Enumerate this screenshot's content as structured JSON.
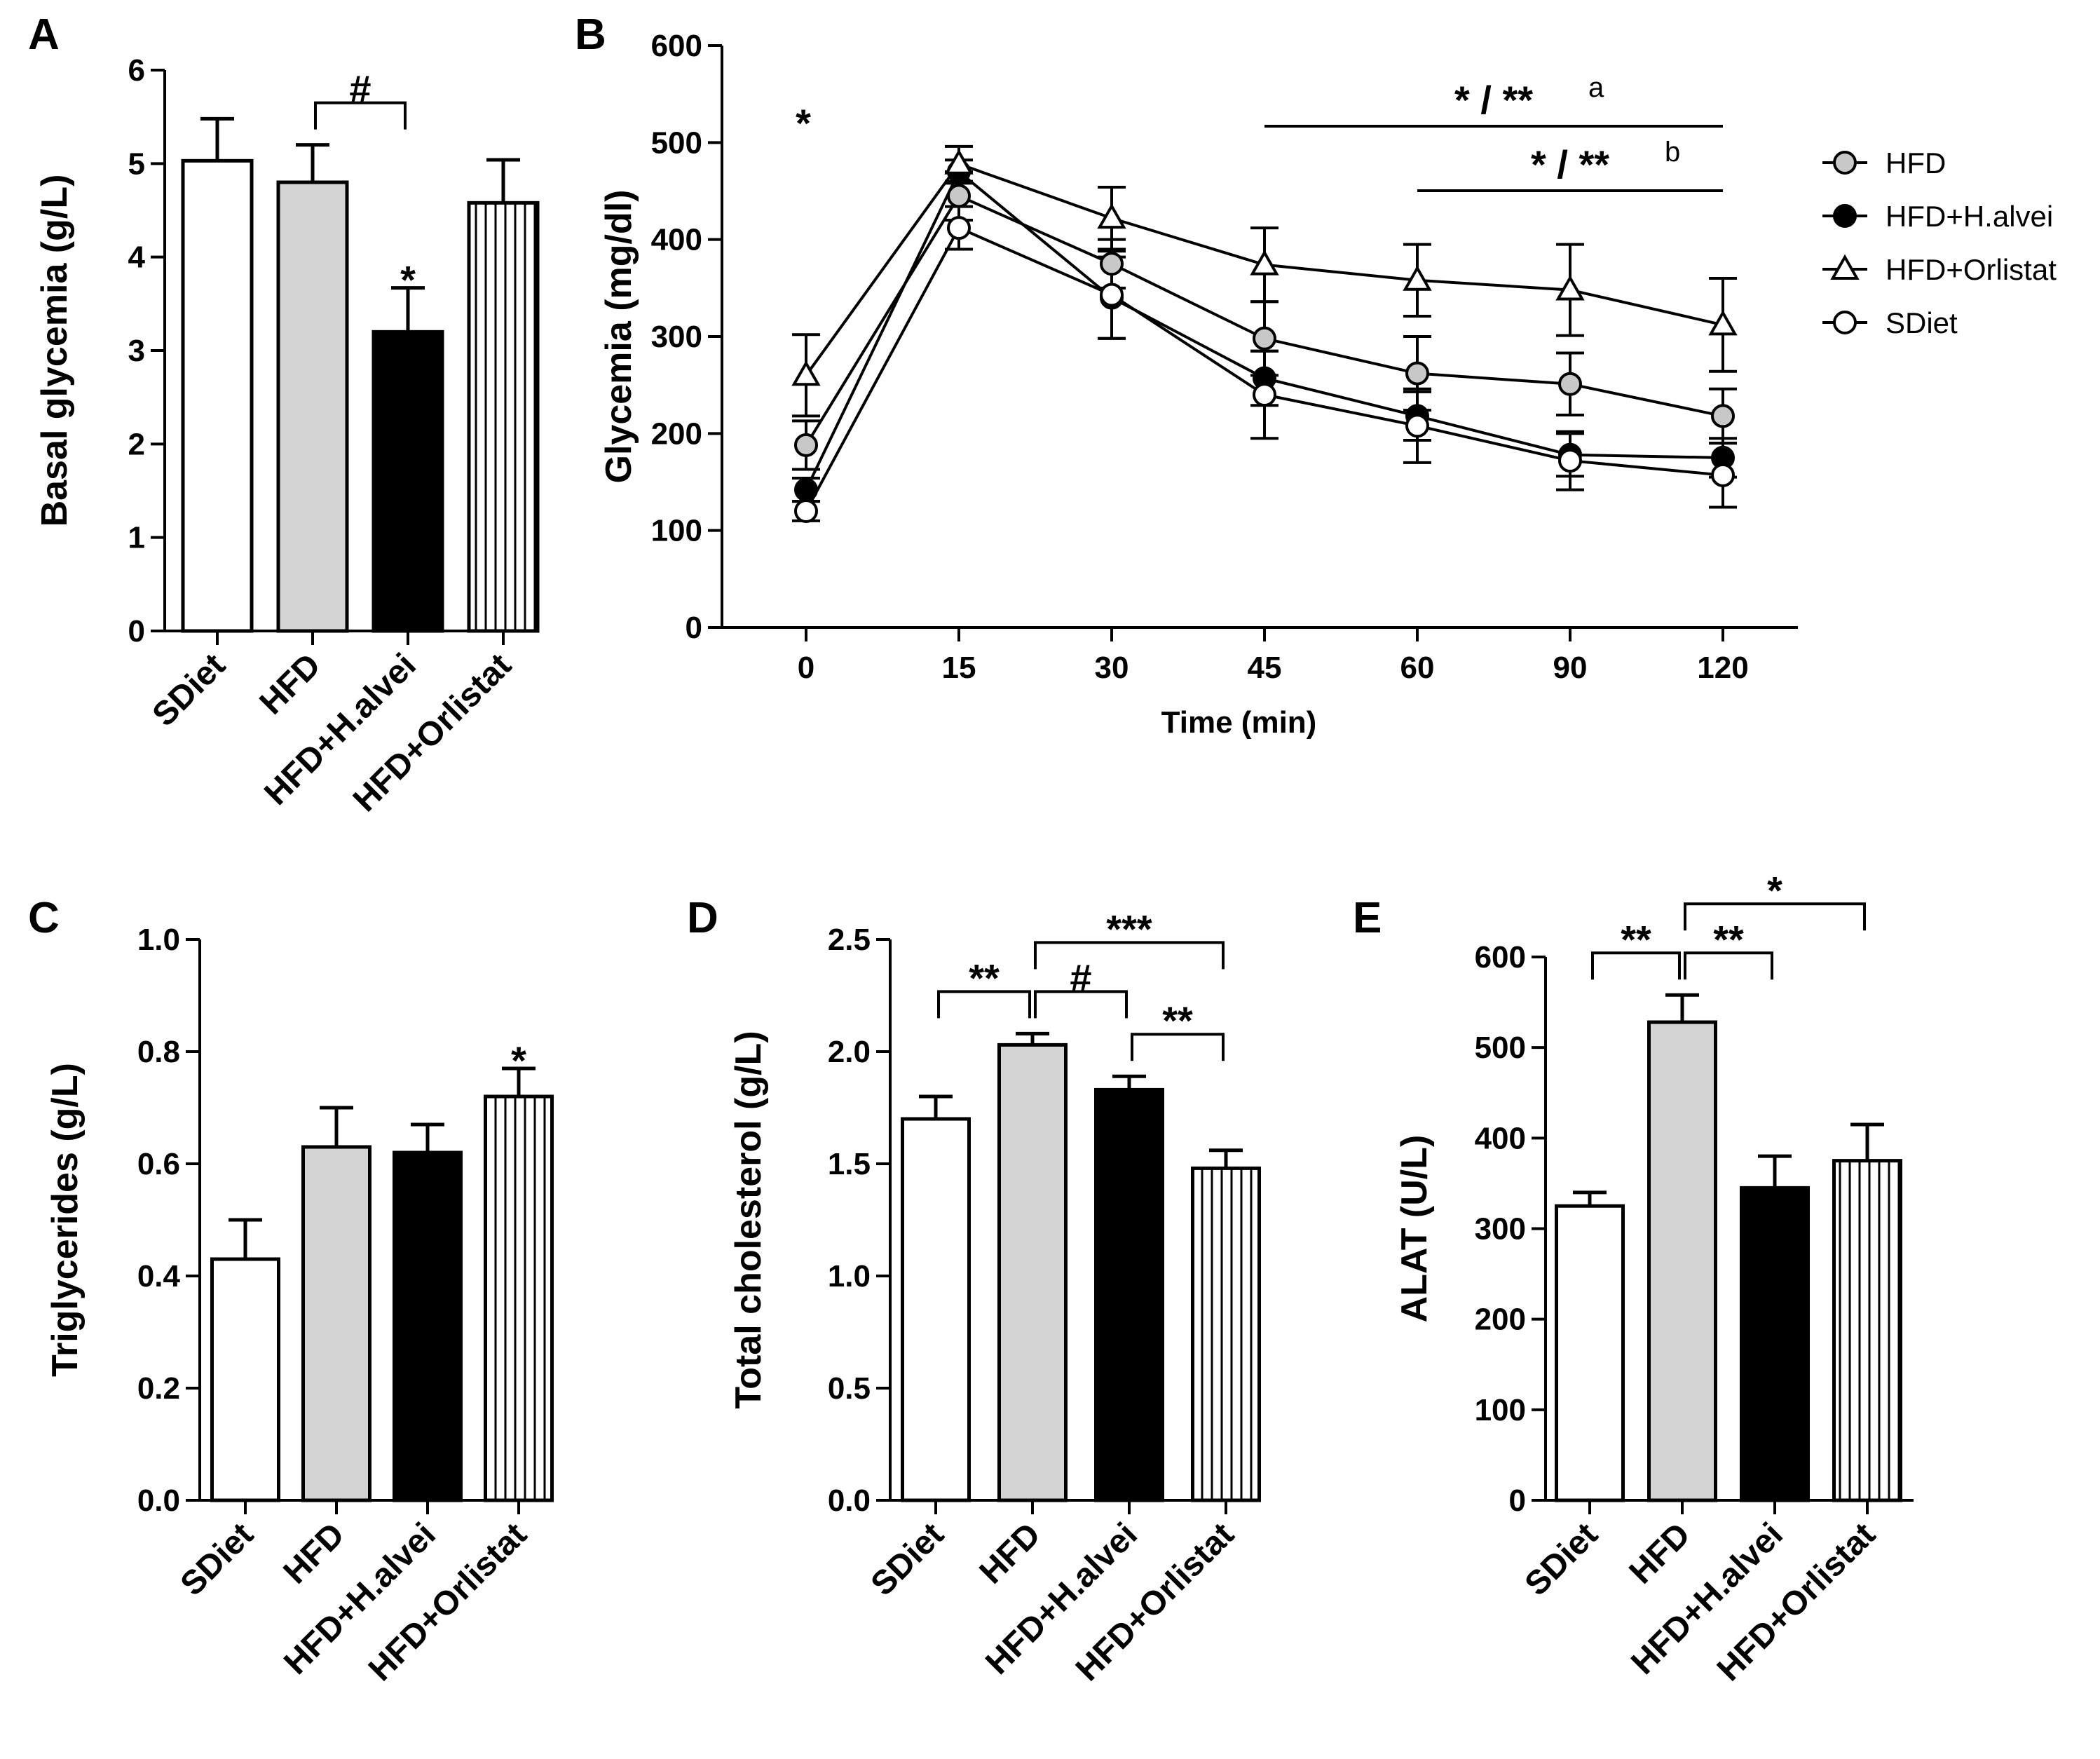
{
  "colors": {
    "SDiet": "#ffffff",
    "HFD": "#d4d4d4",
    "HFD+H.alvei": "#000000",
    "HFD+Orlistat": "hatched"
  },
  "chart_data": [
    {
      "id": "A",
      "type": "bar",
      "panel_label": "A",
      "ylabel": "Basal glycemia (g/L)",
      "ylim": [
        0,
        6
      ],
      "yticks": [
        "0",
        "1",
        "2",
        "3",
        "4",
        "5",
        "6"
      ],
      "categories": [
        "SDiet",
        "HFD",
        "HFD+H.alvei",
        "HFD+Orlistat"
      ],
      "values": [
        5.03,
        4.8,
        3.2,
        4.58
      ],
      "errors": [
        0.45,
        0.4,
        0.47,
        0.46
      ],
      "annotations": [
        {
          "type": "star",
          "text": "*",
          "bar": 2
        },
        {
          "type": "bracket",
          "text": "#",
          "from": 1,
          "to": 2
        }
      ]
    },
    {
      "id": "B",
      "type": "line",
      "panel_label": "B",
      "ylabel": "Glycemia (mg/dl)",
      "xlabel": "Time (min)",
      "ylim": [
        0,
        600
      ],
      "yticks": [
        "0",
        "100",
        "200",
        "300",
        "400",
        "500",
        "600"
      ],
      "x": [
        "0",
        "15",
        "30",
        "45",
        "60",
        "90",
        "120"
      ],
      "series": [
        {
          "name": "HFD",
          "marker": "circle-gray",
          "values": [
            188,
            445,
            375,
            298,
            262,
            251,
            218
          ],
          "errors": [
            25,
            25,
            25,
            38,
            38,
            32,
            28
          ]
        },
        {
          "name": "HFD+H.alvei",
          "marker": "circle-black",
          "values": [
            142,
            470,
            340,
            257,
            218,
            178,
            175
          ],
          "errors": [
            12,
            12,
            42,
            28,
            25,
            22,
            20
          ]
        },
        {
          "name": "HFD+Orlistat",
          "marker": "triangle-open",
          "values": [
            260,
            478,
            422,
            374,
            358,
            348,
            312
          ],
          "errors": [
            42,
            18,
            32,
            38,
            37,
            47,
            48
          ]
        },
        {
          "name": "SDiet",
          "marker": "circle-open",
          "values": [
            120,
            412,
            343,
            240,
            208,
            172,
            157
          ],
          "errors": [
            10,
            22,
            45,
            45,
            38,
            30,
            33
          ]
        }
      ],
      "annotations": [
        {
          "type": "star",
          "text": "*",
          "x": "0"
        },
        {
          "type": "line",
          "text": "* / **",
          "sup": "a",
          "from": "45",
          "to": "120"
        },
        {
          "type": "line",
          "text": "* / **",
          "sup": "b",
          "from": "60",
          "to": "120"
        }
      ]
    },
    {
      "id": "C",
      "type": "bar",
      "panel_label": "C",
      "ylabel": "Triglycerides (g/L)",
      "ylim": [
        0,
        1
      ],
      "yticks": [
        "0.0",
        "0.2",
        "0.4",
        "0.6",
        "0.8",
        "1.0"
      ],
      "categories": [
        "SDiet",
        "HFD",
        "HFD+H.alvei",
        "HFD+Orlistat"
      ],
      "values": [
        0.43,
        0.63,
        0.62,
        0.72
      ],
      "errors": [
        0.07,
        0.07,
        0.05,
        0.05
      ],
      "annotations": [
        {
          "type": "star",
          "text": "*",
          "bar": 3
        }
      ]
    },
    {
      "id": "D",
      "type": "bar",
      "panel_label": "D",
      "ylabel": "Total cholesterol (g/L)",
      "ylim": [
        0,
        2.5
      ],
      "yticks": [
        "0.0",
        "0.5",
        "1.0",
        "1.5",
        "2.0",
        "2.5"
      ],
      "categories": [
        "SDiet",
        "HFD",
        "HFD+H.alvei",
        "HFD+Orlistat"
      ],
      "values": [
        1.7,
        2.03,
        1.83,
        1.48
      ],
      "errors": [
        0.1,
        0.05,
        0.06,
        0.08
      ],
      "annotations": [
        {
          "type": "bracket",
          "text": "**",
          "from": 0,
          "to": 1
        },
        {
          "type": "bracket",
          "text": "#",
          "from": 1,
          "to": 2
        },
        {
          "type": "bracket",
          "text": "***",
          "from": 1,
          "to": 3
        },
        {
          "type": "bracket",
          "text": "**",
          "from": 2,
          "to": 3
        }
      ]
    },
    {
      "id": "E",
      "type": "bar",
      "panel_label": "E",
      "ylabel": "ALAT (U/L)",
      "ylim": [
        0,
        600
      ],
      "yticks": [
        "0",
        "100",
        "200",
        "300",
        "400",
        "500",
        "600"
      ],
      "categories": [
        "SDiet",
        "HFD",
        "HFD+H.alvei",
        "HFD+Orlistat"
      ],
      "values": [
        325,
        528,
        345,
        375
      ],
      "errors": [
        15,
        30,
        35,
        40
      ],
      "annotations": [
        {
          "type": "bracket",
          "text": "**",
          "from": 0,
          "to": 1
        },
        {
          "type": "bracket",
          "text": "**",
          "from": 1,
          "to": 2
        },
        {
          "type": "bracket",
          "text": "*",
          "from": 1,
          "to": 3
        }
      ]
    }
  ]
}
